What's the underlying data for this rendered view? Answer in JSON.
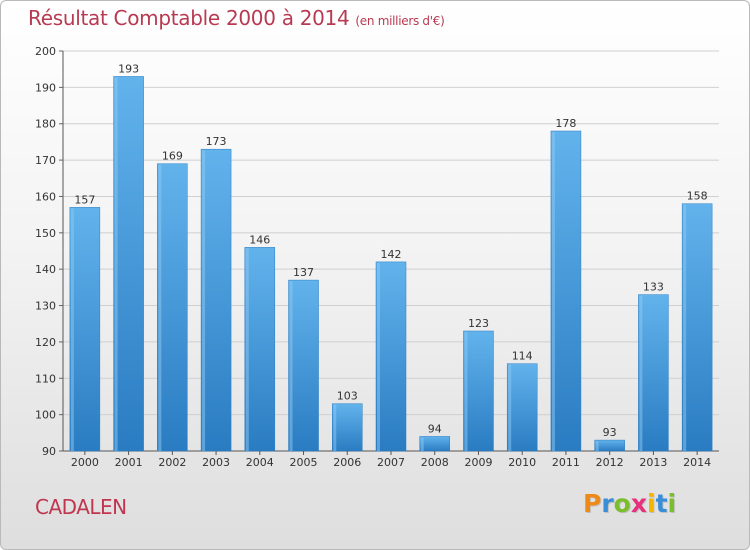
{
  "header": {
    "title": "Résultat Comptable 2000 à 2014",
    "subtitle": "(en milliers d'€)"
  },
  "footer": {
    "commune": "CADALEN",
    "brand_letters": [
      "P",
      "r",
      "o",
      "x",
      "i",
      "t",
      "i"
    ],
    "brand_colors": [
      "#f08a17",
      "#3a8ed8",
      "#7abf2b",
      "#e8317d",
      "#f5b400",
      "#3a8ed8",
      "#7abf2b"
    ]
  },
  "colors": {
    "bar": "#3d93d6",
    "bar_light": "#62b3ec",
    "bar_dark": "#2a7cc2",
    "title": "#b83a52",
    "axis_text": "#333333",
    "grid": "#d0d0d0"
  },
  "chart_data": {
    "type": "bar",
    "title": "Résultat Comptable 2000 à 2014",
    "subtitle": "(en milliers d'€)",
    "xlabel": "",
    "ylabel": "",
    "categories": [
      "2000",
      "2001",
      "2002",
      "2003",
      "2004",
      "2005",
      "2006",
      "2007",
      "2008",
      "2009",
      "2010",
      "2011",
      "2012",
      "2013",
      "2014"
    ],
    "values": [
      157,
      193,
      169,
      173,
      146,
      137,
      103,
      142,
      94,
      123,
      114,
      178,
      93,
      133,
      158
    ],
    "ylim": [
      90,
      200
    ],
    "yticks": [
      90,
      100,
      110,
      120,
      130,
      140,
      150,
      160,
      170,
      180,
      190,
      200
    ],
    "grid": true
  }
}
